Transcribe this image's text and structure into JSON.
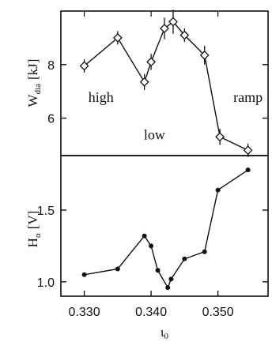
{
  "chart_data": [
    {
      "type": "line",
      "title": "",
      "ylabel_main": "W",
      "ylabel_sub": "dia",
      "ylabel_unit": "[kJ]",
      "ylim": [
        4.6,
        10.0
      ],
      "y_ticks": [
        6,
        8
      ],
      "marker": "diamond",
      "error_bars": true,
      "annotations": [
        {
          "text": "high",
          "x": 0.3325,
          "y": 6.6
        },
        {
          "text": "ramp",
          "x": 0.3545,
          "y": 6.6
        },
        {
          "text": "low",
          "x": 0.3405,
          "y": 5.2
        }
      ],
      "series": [
        {
          "x": [
            0.33,
            0.335,
            0.339,
            0.34,
            0.342,
            0.3433,
            0.345,
            0.348,
            0.3503,
            0.3545
          ],
          "values": [
            7.95,
            9.0,
            7.35,
            8.1,
            9.35,
            9.6,
            9.1,
            8.35,
            5.3,
            4.8
          ],
          "errors": [
            0.25,
            0.25,
            0.3,
            0.3,
            0.4,
            0.45,
            0.25,
            0.35,
            0.3,
            0.25
          ]
        }
      ]
    },
    {
      "type": "line",
      "title": "",
      "ylabel_main": "H",
      "ylabel_sub": "α",
      "ylabel_unit": "[V]",
      "xlabel_main": "ι",
      "xlabel_sub": "0",
      "ylim": [
        0.9,
        1.88
      ],
      "y_ticks": [
        "1.0",
        "1.5"
      ],
      "xlim": [
        0.3265,
        0.3575
      ],
      "x_ticks": [
        "0.330",
        "0.340",
        "0.350"
      ],
      "marker": "dot",
      "series": [
        {
          "x": [
            0.33,
            0.335,
            0.339,
            0.34,
            0.341,
            0.3425,
            0.343,
            0.345,
            0.348,
            0.35,
            0.3545
          ],
          "values": [
            1.05,
            1.09,
            1.32,
            1.25,
            1.08,
            0.96,
            1.02,
            1.16,
            1.21,
            1.64,
            1.78
          ]
        }
      ]
    }
  ]
}
